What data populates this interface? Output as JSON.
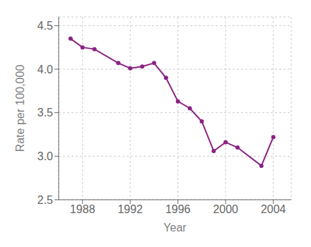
{
  "chart_data": {
    "type": "line",
    "xlabel": "Year",
    "ylabel": "Rate per 100,000",
    "x": [
      1987,
      1988,
      1989,
      1991,
      1992,
      1993,
      1994,
      1995,
      1996,
      1997,
      1998,
      1999,
      2000,
      2001,
      2003,
      2004
    ],
    "values": [
      4.35,
      4.25,
      4.23,
      4.07,
      4.01,
      4.03,
      4.07,
      3.9,
      3.63,
      3.55,
      3.4,
      3.06,
      3.16,
      3.1,
      2.89,
      3.22
    ],
    "color": "#8B2282",
    "marker": "circle",
    "xlim": [
      1986.0,
      2005.5
    ],
    "ylim": [
      2.5,
      4.6
    ],
    "xticks": [
      1988,
      1992,
      1996,
      2000,
      2004
    ],
    "yticks": [
      2.5,
      {
        "value": 3,
        "label": "3.0"
      },
      3.5,
      {
        "value": 4,
        "label": "4.0"
      },
      4.5
    ],
    "grid": true
  }
}
